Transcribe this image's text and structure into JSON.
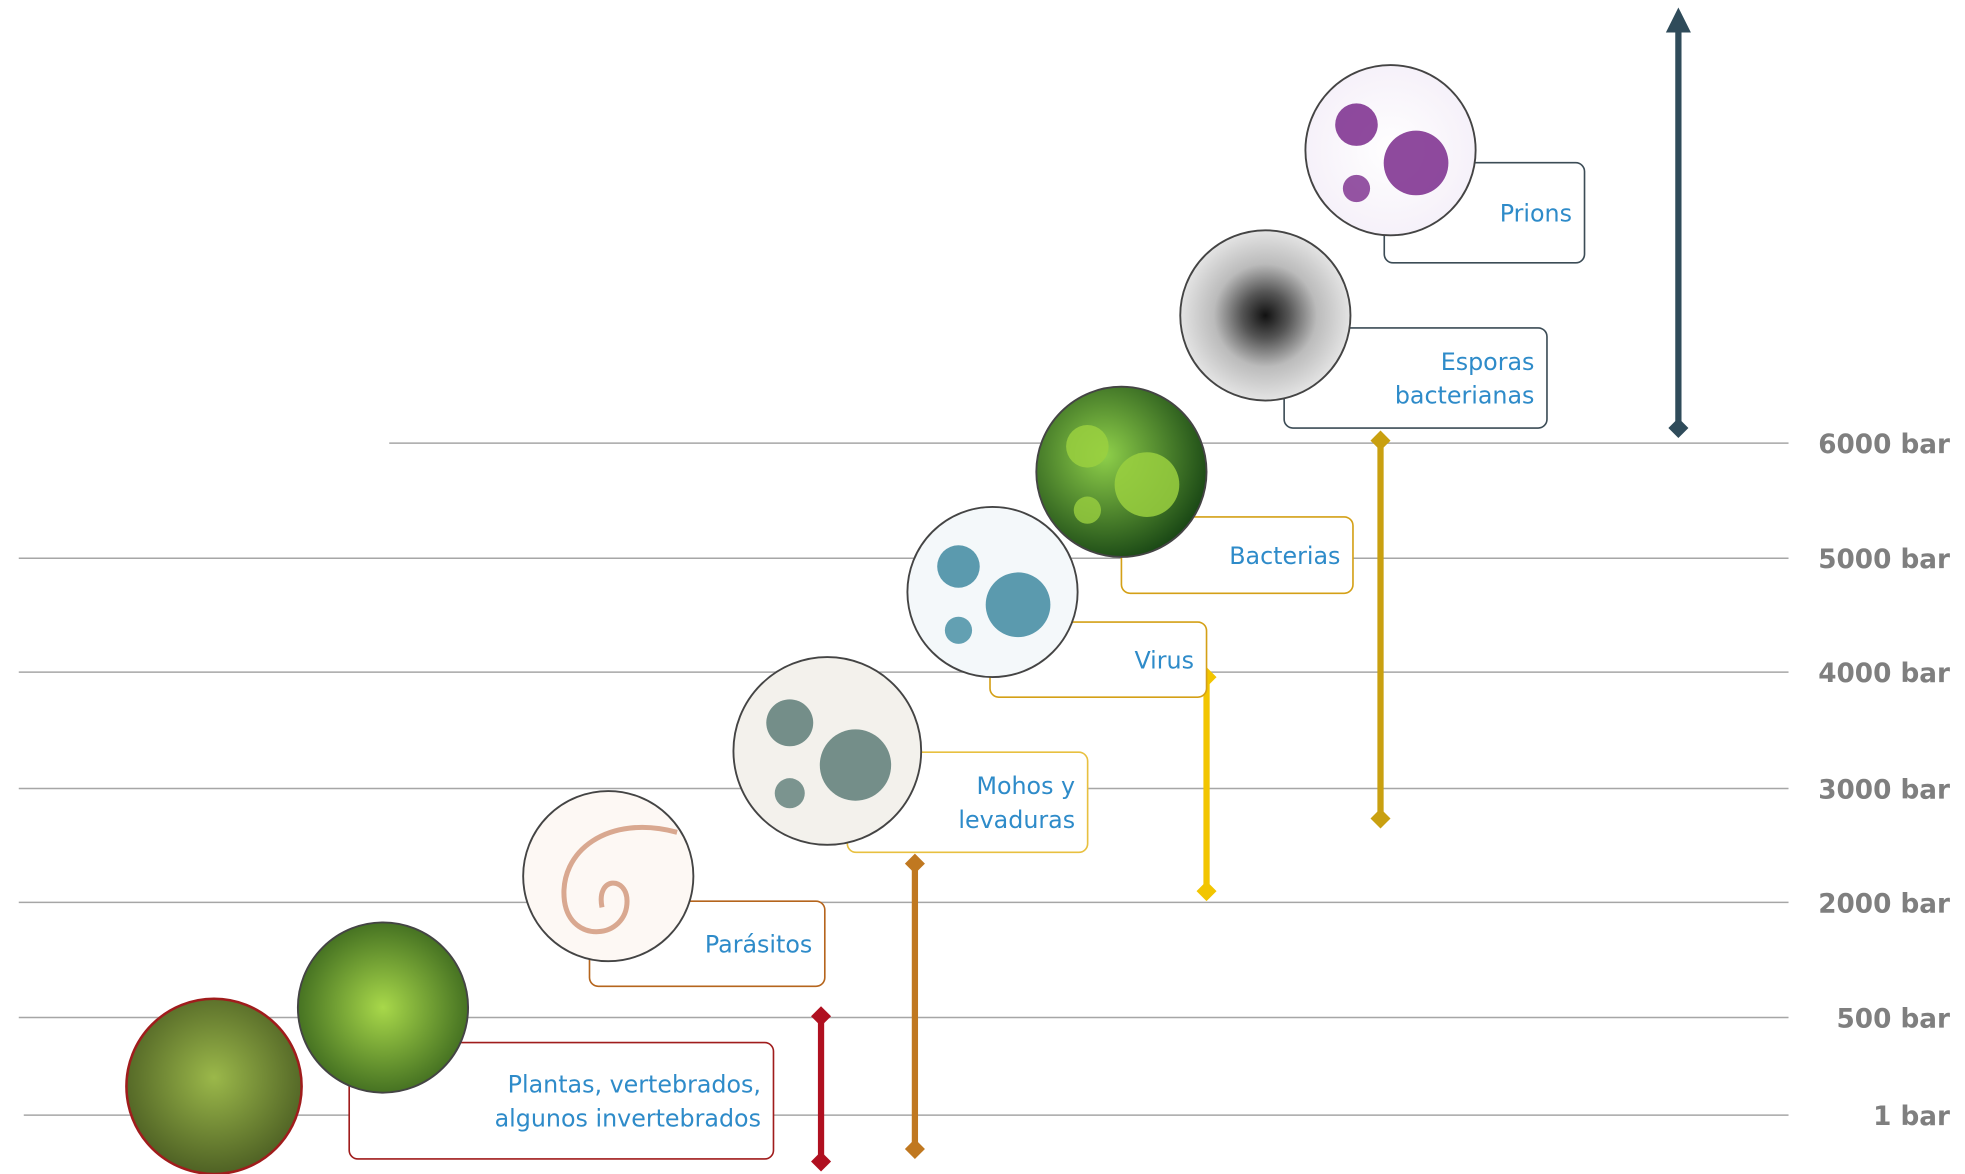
{
  "levels": [
    "6000 bar",
    "5000 bar",
    "4000 bar",
    "3000 bar",
    "2000 bar",
    "500 bar",
    "1 bar"
  ],
  "items": [
    {
      "lines": [
        "Prions"
      ]
    },
    {
      "lines": [
        "Esporas",
        "bacterianas"
      ]
    },
    {
      "lines": [
        "Bacterias"
      ]
    },
    {
      "lines": [
        "Virus"
      ]
    },
    {
      "lines": [
        "Mohos y",
        "levaduras"
      ]
    },
    {
      "lines": [
        "Parásitos"
      ]
    },
    {
      "lines": [
        "Plantas, vertebrados,",
        "algunos invertebrados"
      ]
    }
  ]
}
